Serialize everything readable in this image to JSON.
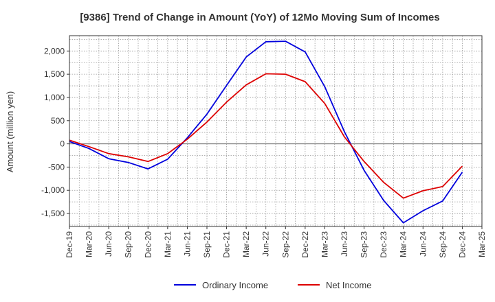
{
  "chart_data": {
    "type": "line",
    "title": "[9386]  Trend of Change in Amount (YoY) of 12Mo Moving Sum of Incomes",
    "xlabel": "",
    "ylabel": "Amount (million yen)",
    "ylim": [
      -1780,
      2330
    ],
    "yticks": [
      -1500,
      -1000,
      -500,
      0,
      500,
      1000,
      1500,
      2000
    ],
    "ytick_labels": [
      "-1,500",
      "-1,000",
      "-500",
      "0",
      "500",
      "1,000",
      "1,500",
      "2,000"
    ],
    "categories": [
      "Dec-19",
      "Mar-20",
      "Jun-20",
      "Sep-20",
      "Dec-20",
      "Mar-21",
      "Jun-21",
      "Sep-21",
      "Dec-21",
      "Mar-22",
      "Jun-22",
      "Sep-22",
      "Dec-22",
      "Mar-23",
      "Jun-23",
      "Sep-23",
      "Dec-23",
      "Mar-24",
      "Jun-24",
      "Sep-24",
      "Dec-24",
      "Mar-25"
    ],
    "grid": true,
    "legend_position": "bottom-center",
    "series": [
      {
        "name": "Ordinary Income",
        "color": "#0000dd",
        "values": [
          50,
          -100,
          -320,
          -400,
          -540,
          -330,
          130,
          640,
          1260,
          1870,
          2200,
          2210,
          1980,
          1230,
          260,
          -570,
          -1220,
          -1700,
          -1440,
          -1230,
          -610,
          null
        ]
      },
      {
        "name": "Net Income",
        "color": "#dd0000",
        "values": [
          80,
          -60,
          -210,
          -280,
          -380,
          -210,
          100,
          470,
          900,
          1270,
          1510,
          1500,
          1340,
          870,
          150,
          -380,
          -830,
          -1170,
          -1010,
          -920,
          -480,
          null
        ]
      }
    ]
  }
}
